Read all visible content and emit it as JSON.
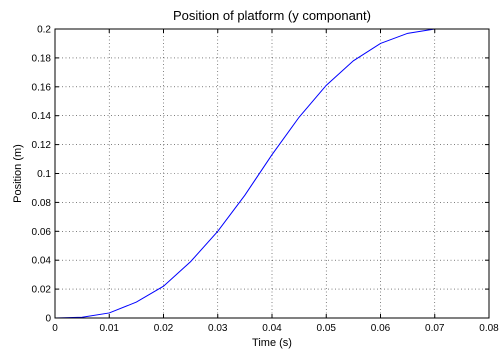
{
  "chart_data": {
    "type": "line",
    "title": "Position of platform (y componant)",
    "xlabel": "Time (s)",
    "ylabel": "Position (m)",
    "xlim": [
      0,
      0.08
    ],
    "ylim": [
      0,
      0.2
    ],
    "xticks": [
      0,
      0.01,
      0.02,
      0.03,
      0.04,
      0.05,
      0.06,
      0.07,
      0.08
    ],
    "xtick_labels": [
      "0",
      "0.01",
      "0.02",
      "0.03",
      "0.04",
      "0.05",
      "0.06",
      "0.07",
      "0.08"
    ],
    "yticks": [
      0,
      0.02,
      0.04,
      0.06,
      0.08,
      0.1,
      0.12,
      0.14,
      0.16,
      0.18,
      0.2
    ],
    "ytick_labels": [
      "0",
      "0.02",
      "0.04",
      "0.06",
      "0.08",
      "0.1",
      "0.12",
      "0.14",
      "0.16",
      "0.18",
      "0.2"
    ],
    "grid": true,
    "series": [
      {
        "color": "#0000ff",
        "x": [
          0,
          0.005,
          0.01,
          0.015,
          0.02,
          0.025,
          0.03,
          0.035,
          0.04,
          0.045,
          0.05,
          0.055,
          0.06,
          0.065,
          0.07
        ],
        "y": [
          0,
          0.0005,
          0.0035,
          0.011,
          0.022,
          0.039,
          0.06,
          0.085,
          0.113,
          0.139,
          0.161,
          0.178,
          0.19,
          0.197,
          0.2
        ]
      }
    ]
  }
}
